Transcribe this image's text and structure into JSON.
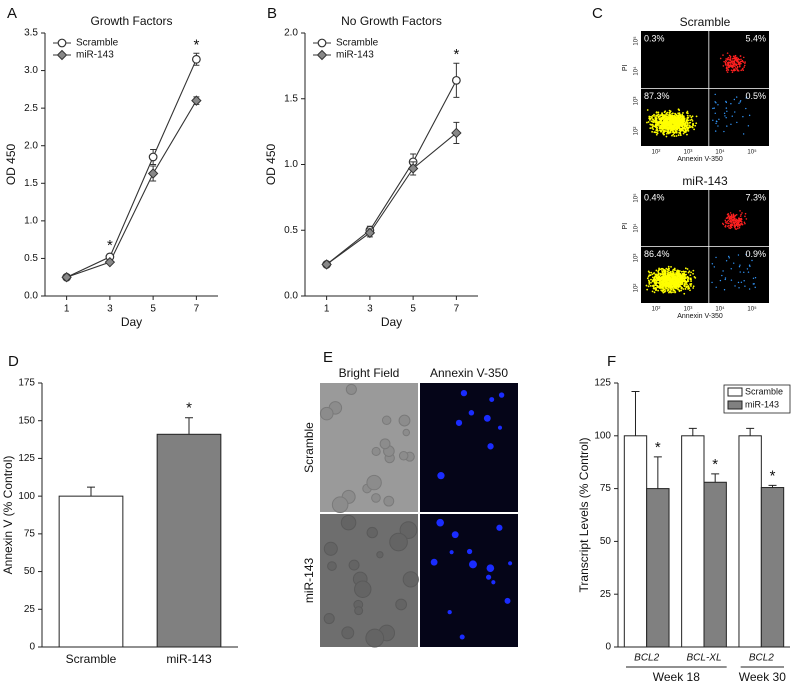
{
  "chart_data": [
    {
      "type": "line",
      "panel": "A",
      "title": "Growth Factors",
      "xlabel": "Day",
      "ylabel": "OD 450",
      "x": [
        1,
        3,
        5,
        7
      ],
      "xlim": [
        0,
        8
      ],
      "xticks": [
        1,
        3,
        5,
        7
      ],
      "ylim": [
        0,
        3.5
      ],
      "yticks": [
        {
          "value": 0,
          "label": "0.0"
        },
        0.5,
        {
          "value": 1,
          "label": "1.0"
        },
        1.5,
        {
          "value": 2,
          "label": "2.0"
        },
        2.5,
        {
          "value": 3,
          "label": "3.0"
        },
        3.5
      ],
      "legend": "top-left",
      "series": [
        {
          "name": "Scramble",
          "color": "#333333",
          "marker": "circle",
          "values": [
            0.25,
            0.52,
            1.85,
            3.15
          ],
          "errors": [
            0.02,
            0.04,
            0.1,
            0.08
          ]
        },
        {
          "name": "miR-143",
          "color": "#333333",
          "marker": "diamond",
          "values": [
            0.25,
            0.45,
            1.63,
            2.6
          ],
          "errors": [
            0.02,
            0.02,
            0.1,
            0.05
          ],
          "significance": [
            null,
            "*",
            null,
            "*"
          ]
        }
      ]
    },
    {
      "type": "line",
      "panel": "B",
      "title": "No Growth Factors",
      "xlabel": "Day",
      "ylabel": "OD 450",
      "x": [
        1,
        3,
        5,
        7
      ],
      "xlim": [
        0,
        8
      ],
      "xticks": [
        1,
        3,
        5,
        7
      ],
      "ylim": [
        0,
        2
      ],
      "yticks": [
        {
          "value": 0,
          "label": "0.0"
        },
        0.5,
        {
          "value": 1,
          "label": "1.0"
        },
        1.5,
        {
          "value": 2,
          "label": "2.0"
        }
      ],
      "legend": "top-left",
      "series": [
        {
          "name": "Scramble",
          "color": "#333333",
          "marker": "circle",
          "values": [
            0.24,
            0.5,
            1.02,
            1.64
          ],
          "errors": [
            0.01,
            0.03,
            0.06,
            0.13
          ]
        },
        {
          "name": "miR-143",
          "color": "#333333",
          "marker": "diamond",
          "values": [
            0.24,
            0.48,
            0.97,
            1.24
          ],
          "errors": [
            0.01,
            0.03,
            0.05,
            0.08
          ],
          "significance": [
            null,
            null,
            null,
            "*"
          ]
        }
      ]
    },
    {
      "type": "bar",
      "panel": "D",
      "ylabel": "Annexin V (% Control)",
      "categories": [
        "Scramble",
        "miR-143"
      ],
      "values": [
        100,
        141
      ],
      "errors": [
        6,
        11
      ],
      "colors": [
        "#ffffff",
        "#808080"
      ],
      "significance": [
        null,
        "*"
      ],
      "ylim": [
        0,
        175
      ],
      "yticks": [
        0,
        25,
        50,
        75,
        100,
        125,
        150,
        175
      ]
    },
    {
      "type": "grouped-bar",
      "panel": "F",
      "ylabel": "Transcript Levels (% Control)",
      "groups": [
        {
          "label": "Week 18",
          "categories": [
            "BCL2",
            "BCL-XL"
          ]
        },
        {
          "label": "Week 30",
          "categories": [
            "BCL2"
          ]
        }
      ],
      "legend": "top-right",
      "series": [
        {
          "name": "Scramble",
          "color": "#ffffff",
          "values": [
            100,
            100,
            100
          ],
          "errors": [
            21,
            3.5,
            3.5
          ]
        },
        {
          "name": "miR-143",
          "color": "#808080",
          "values": [
            75,
            78,
            75.5
          ],
          "errors": [
            15,
            4,
            1
          ],
          "significance": [
            "*",
            "*",
            "*"
          ]
        }
      ],
      "ylim": [
        0,
        125
      ],
      "yticks": [
        0,
        25,
        50,
        75,
        100,
        125
      ]
    }
  ],
  "flow": {
    "panel": "C",
    "xlabel": "Annexin V-350",
    "ylabel": "PI",
    "ticks": [
      "10²",
      "10³",
      "10⁴",
      "10⁵"
    ],
    "plots": [
      {
        "title": "Scramble",
        "quadrants": {
          "top_left": "0.3%",
          "top_right": "5.4%",
          "bottom_left": "87.3%",
          "bottom_right": "0.5%"
        }
      },
      {
        "title": "miR-143",
        "quadrants": {
          "top_left": "0.4%",
          "top_right": "7.3%",
          "bottom_left": "86.4%",
          "bottom_right": "0.9%"
        }
      }
    ]
  },
  "microscopy": {
    "panel": "E",
    "columns": [
      "Bright Field",
      "Annexin V-350"
    ],
    "rows": [
      "Scramble",
      "miR-143"
    ]
  }
}
